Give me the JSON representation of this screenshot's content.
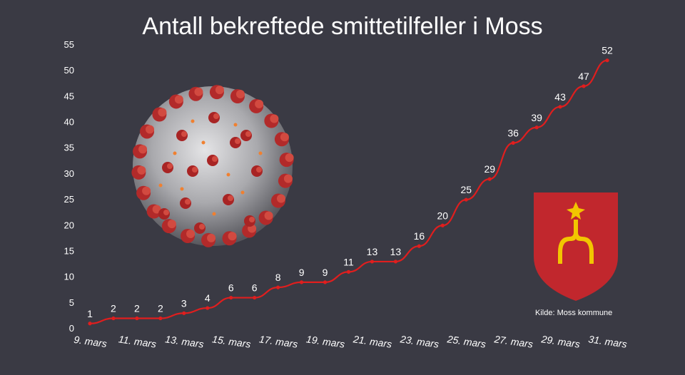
{
  "chart_data": {
    "type": "line",
    "title": "Antall bekreftede smittetilfeller i Moss",
    "x": [
      "9. mars",
      "10. mars",
      "11. mars",
      "12. mars",
      "13. mars",
      "14. mars",
      "15. mars",
      "16. mars",
      "17. mars",
      "18. mars",
      "19. mars",
      "20. mars",
      "21. mars",
      "22. mars",
      "23. mars",
      "24. mars",
      "25. mars",
      "26. mars",
      "27. mars",
      "28. mars",
      "29. mars",
      "30. mars",
      "31. mars"
    ],
    "x_tick_labels": [
      "9. mars",
      "11. mars",
      "13. mars",
      "15. mars",
      "17. mars",
      "19. mars",
      "21. mars",
      "23. mars",
      "25. mars",
      "27. mars",
      "29. mars",
      "31. mars"
    ],
    "series": [
      {
        "values": [
          1,
          2,
          2,
          2,
          3,
          4,
          6,
          6,
          8,
          9,
          9,
          11,
          13,
          13,
          16,
          20,
          25,
          29,
          36,
          39,
          43,
          47,
          52
        ]
      }
    ],
    "ylim": [
      0,
      55
    ],
    "yticks": [
      0,
      5,
      10,
      15,
      20,
      25,
      30,
      35,
      40,
      45,
      50,
      55
    ],
    "grid": false,
    "source": "Kilde: Moss kommune",
    "colors": {
      "background": "#3a3a44",
      "line": "#e01e1e",
      "text": "#ffffff",
      "coat_of_arms_shield": "#c1272d",
      "coat_of_arms_charge": "#f2c500"
    },
    "images": [
      "coronavirus-illustration",
      "moss-coat-of-arms"
    ]
  }
}
